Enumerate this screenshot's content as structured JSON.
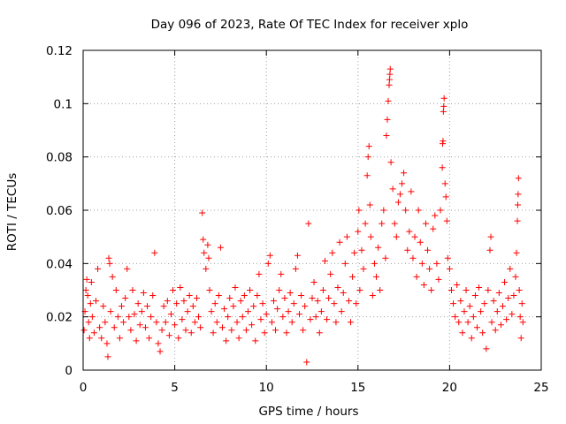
{
  "chart_data": {
    "type": "scatter",
    "title": "Day 096 of 2023, Rate Of TEC Index for receiver xplo",
    "xlabel": "GPS time / hours",
    "ylabel": "ROTI / TECUs",
    "xlim": [
      0,
      25
    ],
    "ylim": [
      0,
      0.12
    ],
    "xticks": [
      0,
      5,
      10,
      15,
      20,
      25
    ],
    "xtick_labels": [
      "0",
      "5",
      "10",
      "15",
      "20",
      "25"
    ],
    "yticks": [
      0,
      0.02,
      0.04,
      0.06,
      0.08,
      0.1,
      0.12
    ],
    "ytick_labels": [
      "0",
      "0.02",
      "0.04",
      "0.06",
      "0.08",
      "0.1",
      "0.12"
    ],
    "grid": true,
    "marker": "+",
    "color": "#ff0000",
    "series": [
      {
        "points": [
          [
            0.05,
            0.015
          ],
          [
            0.1,
            0.022
          ],
          [
            0.15,
            0.03
          ],
          [
            0.2,
            0.034
          ],
          [
            0.25,
            0.028
          ],
          [
            0.3,
            0.018
          ],
          [
            0.35,
            0.012
          ],
          [
            0.4,
            0.025
          ],
          [
            0.45,
            0.033
          ],
          [
            0.5,
            0.02
          ],
          [
            0.6,
            0.014
          ],
          [
            0.7,
            0.026
          ],
          [
            0.8,
            0.038
          ],
          [
            0.9,
            0.016
          ],
          [
            1.0,
            0.012
          ],
          [
            1.1,
            0.024
          ],
          [
            1.2,
            0.018
          ],
          [
            1.3,
            0.01
          ],
          [
            1.35,
            0.005
          ],
          [
            1.4,
            0.042
          ],
          [
            1.45,
            0.04
          ],
          [
            1.5,
            0.022
          ],
          [
            1.6,
            0.035
          ],
          [
            1.7,
            0.016
          ],
          [
            1.8,
            0.03
          ],
          [
            1.9,
            0.02
          ],
          [
            2.0,
            0.012
          ],
          [
            2.1,
            0.024
          ],
          [
            2.2,
            0.018
          ],
          [
            2.3,
            0.027
          ],
          [
            2.4,
            0.038
          ],
          [
            2.5,
            0.02
          ],
          [
            2.6,
            0.015
          ],
          [
            2.7,
            0.03
          ],
          [
            2.8,
            0.021
          ],
          [
            2.9,
            0.011
          ],
          [
            3.0,
            0.025
          ],
          [
            3.1,
            0.017
          ],
          [
            3.2,
            0.022
          ],
          [
            3.3,
            0.029
          ],
          [
            3.4,
            0.016
          ],
          [
            3.5,
            0.024
          ],
          [
            3.6,
            0.012
          ],
          [
            3.7,
            0.02
          ],
          [
            3.8,
            0.028
          ],
          [
            3.9,
            0.044
          ],
          [
            4.0,
            0.018
          ],
          [
            4.1,
            0.01
          ],
          [
            4.2,
            0.007
          ],
          [
            4.3,
            0.015
          ],
          [
            4.4,
            0.024
          ],
          [
            4.5,
            0.018
          ],
          [
            4.6,
            0.026
          ],
          [
            4.7,
            0.013
          ],
          [
            4.8,
            0.021
          ],
          [
            4.9,
            0.03
          ],
          [
            5.0,
            0.017
          ],
          [
            5.1,
            0.025
          ],
          [
            5.2,
            0.012
          ],
          [
            5.3,
            0.031
          ],
          [
            5.4,
            0.019
          ],
          [
            5.5,
            0.026
          ],
          [
            5.6,
            0.015
          ],
          [
            5.7,
            0.022
          ],
          [
            5.8,
            0.028
          ],
          [
            5.9,
            0.014
          ],
          [
            6.0,
            0.024
          ],
          [
            6.1,
            0.018
          ],
          [
            6.2,
            0.027
          ],
          [
            6.3,
            0.02
          ],
          [
            6.4,
            0.016
          ],
          [
            6.5,
            0.059
          ],
          [
            6.55,
            0.049
          ],
          [
            6.6,
            0.044
          ],
          [
            6.7,
            0.038
          ],
          [
            6.8,
            0.047
          ],
          [
            6.85,
            0.042
          ],
          [
            6.9,
            0.03
          ],
          [
            7.0,
            0.022
          ],
          [
            7.1,
            0.014
          ],
          [
            7.2,
            0.025
          ],
          [
            7.3,
            0.018
          ],
          [
            7.4,
            0.028
          ],
          [
            7.5,
            0.046
          ],
          [
            7.6,
            0.016
          ],
          [
            7.7,
            0.023
          ],
          [
            7.8,
            0.011
          ],
          [
            7.9,
            0.02
          ],
          [
            8.0,
            0.027
          ],
          [
            8.1,
            0.015
          ],
          [
            8.2,
            0.024
          ],
          [
            8.3,
            0.031
          ],
          [
            8.4,
            0.018
          ],
          [
            8.5,
            0.012
          ],
          [
            8.6,
            0.026
          ],
          [
            8.7,
            0.02
          ],
          [
            8.8,
            0.028
          ],
          [
            8.9,
            0.015
          ],
          [
            9.0,
            0.022
          ],
          [
            9.1,
            0.03
          ],
          [
            9.2,
            0.017
          ],
          [
            9.3,
            0.024
          ],
          [
            9.4,
            0.011
          ],
          [
            9.5,
            0.028
          ],
          [
            9.6,
            0.036
          ],
          [
            9.7,
            0.019
          ],
          [
            9.8,
            0.025
          ],
          [
            9.9,
            0.014
          ],
          [
            10.0,
            0.021
          ],
          [
            10.1,
            0.04
          ],
          [
            10.2,
            0.043
          ],
          [
            10.3,
            0.018
          ],
          [
            10.4,
            0.026
          ],
          [
            10.5,
            0.015
          ],
          [
            10.6,
            0.023
          ],
          [
            10.7,
            0.03
          ],
          [
            10.8,
            0.036
          ],
          [
            10.9,
            0.02
          ],
          [
            11.0,
            0.027
          ],
          [
            11.1,
            0.014
          ],
          [
            11.2,
            0.022
          ],
          [
            11.3,
            0.029
          ],
          [
            11.4,
            0.018
          ],
          [
            11.5,
            0.025
          ],
          [
            11.6,
            0.038
          ],
          [
            11.7,
            0.043
          ],
          [
            11.8,
            0.021
          ],
          [
            11.9,
            0.028
          ],
          [
            12.0,
            0.015
          ],
          [
            12.1,
            0.024
          ],
          [
            12.2,
            0.003
          ],
          [
            12.3,
            0.055
          ],
          [
            12.4,
            0.019
          ],
          [
            12.5,
            0.027
          ],
          [
            12.6,
            0.033
          ],
          [
            12.7,
            0.02
          ],
          [
            12.8,
            0.026
          ],
          [
            12.9,
            0.014
          ],
          [
            13.0,
            0.022
          ],
          [
            13.1,
            0.03
          ],
          [
            13.2,
            0.041
          ],
          [
            13.3,
            0.019
          ],
          [
            13.4,
            0.027
          ],
          [
            13.5,
            0.036
          ],
          [
            13.6,
            0.044
          ],
          [
            13.7,
            0.025
          ],
          [
            13.8,
            0.018
          ],
          [
            13.9,
            0.031
          ],
          [
            14.0,
            0.048
          ],
          [
            14.1,
            0.022
          ],
          [
            14.2,
            0.029
          ],
          [
            14.3,
            0.04
          ],
          [
            14.4,
            0.05
          ],
          [
            14.5,
            0.026
          ],
          [
            14.6,
            0.018
          ],
          [
            14.7,
            0.035
          ],
          [
            14.8,
            0.044
          ],
          [
            14.9,
            0.025
          ],
          [
            15.0,
            0.052
          ],
          [
            15.05,
            0.06
          ],
          [
            15.1,
            0.03
          ],
          [
            15.2,
            0.045
          ],
          [
            15.3,
            0.038
          ],
          [
            15.4,
            0.055
          ],
          [
            15.5,
            0.073
          ],
          [
            15.55,
            0.08
          ],
          [
            15.6,
            0.084
          ],
          [
            15.65,
            0.062
          ],
          [
            15.7,
            0.05
          ],
          [
            15.8,
            0.028
          ],
          [
            15.9,
            0.04
          ],
          [
            16.0,
            0.035
          ],
          [
            16.1,
            0.046
          ],
          [
            16.2,
            0.03
          ],
          [
            16.3,
            0.055
          ],
          [
            16.4,
            0.06
          ],
          [
            16.5,
            0.042
          ],
          [
            16.55,
            0.088
          ],
          [
            16.6,
            0.094
          ],
          [
            16.65,
            0.101
          ],
          [
            16.7,
            0.107
          ],
          [
            16.72,
            0.109
          ],
          [
            16.74,
            0.111
          ],
          [
            16.76,
            0.113
          ],
          [
            16.8,
            0.078
          ],
          [
            16.9,
            0.068
          ],
          [
            17.0,
            0.055
          ],
          [
            17.1,
            0.05
          ],
          [
            17.2,
            0.063
          ],
          [
            17.3,
            0.066
          ],
          [
            17.4,
            0.07
          ],
          [
            17.5,
            0.074
          ],
          [
            17.6,
            0.06
          ],
          [
            17.7,
            0.045
          ],
          [
            17.8,
            0.052
          ],
          [
            17.9,
            0.067
          ],
          [
            18.0,
            0.042
          ],
          [
            18.1,
            0.05
          ],
          [
            18.2,
            0.035
          ],
          [
            18.3,
            0.06
          ],
          [
            18.4,
            0.048
          ],
          [
            18.5,
            0.04
          ],
          [
            18.6,
            0.032
          ],
          [
            18.7,
            0.055
          ],
          [
            18.8,
            0.045
          ],
          [
            18.9,
            0.038
          ],
          [
            19.0,
            0.03
          ],
          [
            19.1,
            0.053
          ],
          [
            19.2,
            0.058
          ],
          [
            19.3,
            0.04
          ],
          [
            19.4,
            0.034
          ],
          [
            19.5,
            0.06
          ],
          [
            19.6,
            0.076
          ],
          [
            19.62,
            0.085
          ],
          [
            19.64,
            0.086
          ],
          [
            19.66,
            0.097
          ],
          [
            19.68,
            0.099
          ],
          [
            19.7,
            0.102
          ],
          [
            19.75,
            0.07
          ],
          [
            19.8,
            0.065
          ],
          [
            19.85,
            0.056
          ],
          [
            19.9,
            0.042
          ],
          [
            20.0,
            0.038
          ],
          [
            20.1,
            0.03
          ],
          [
            20.2,
            0.025
          ],
          [
            20.3,
            0.02
          ],
          [
            20.4,
            0.032
          ],
          [
            20.5,
            0.018
          ],
          [
            20.6,
            0.026
          ],
          [
            20.7,
            0.014
          ],
          [
            20.8,
            0.022
          ],
          [
            20.9,
            0.03
          ],
          [
            21.0,
            0.018
          ],
          [
            21.1,
            0.024
          ],
          [
            21.2,
            0.012
          ],
          [
            21.3,
            0.02
          ],
          [
            21.4,
            0.028
          ],
          [
            21.5,
            0.016
          ],
          [
            21.6,
            0.031
          ],
          [
            21.7,
            0.022
          ],
          [
            21.8,
            0.014
          ],
          [
            21.9,
            0.025
          ],
          [
            22.0,
            0.008
          ],
          [
            22.1,
            0.03
          ],
          [
            22.2,
            0.045
          ],
          [
            22.25,
            0.05
          ],
          [
            22.3,
            0.018
          ],
          [
            22.4,
            0.026
          ],
          [
            22.5,
            0.015
          ],
          [
            22.6,
            0.022
          ],
          [
            22.7,
            0.029
          ],
          [
            22.8,
            0.017
          ],
          [
            22.9,
            0.024
          ],
          [
            23.0,
            0.033
          ],
          [
            23.1,
            0.019
          ],
          [
            23.2,
            0.027
          ],
          [
            23.3,
            0.038
          ],
          [
            23.4,
            0.021
          ],
          [
            23.5,
            0.028
          ],
          [
            23.6,
            0.035
          ],
          [
            23.65,
            0.044
          ],
          [
            23.7,
            0.056
          ],
          [
            23.72,
            0.062
          ],
          [
            23.74,
            0.066
          ],
          [
            23.76,
            0.072
          ],
          [
            23.8,
            0.03
          ],
          [
            23.85,
            0.02
          ],
          [
            23.9,
            0.012
          ],
          [
            23.95,
            0.025
          ],
          [
            24.0,
            0.018
          ]
        ]
      }
    ]
  }
}
